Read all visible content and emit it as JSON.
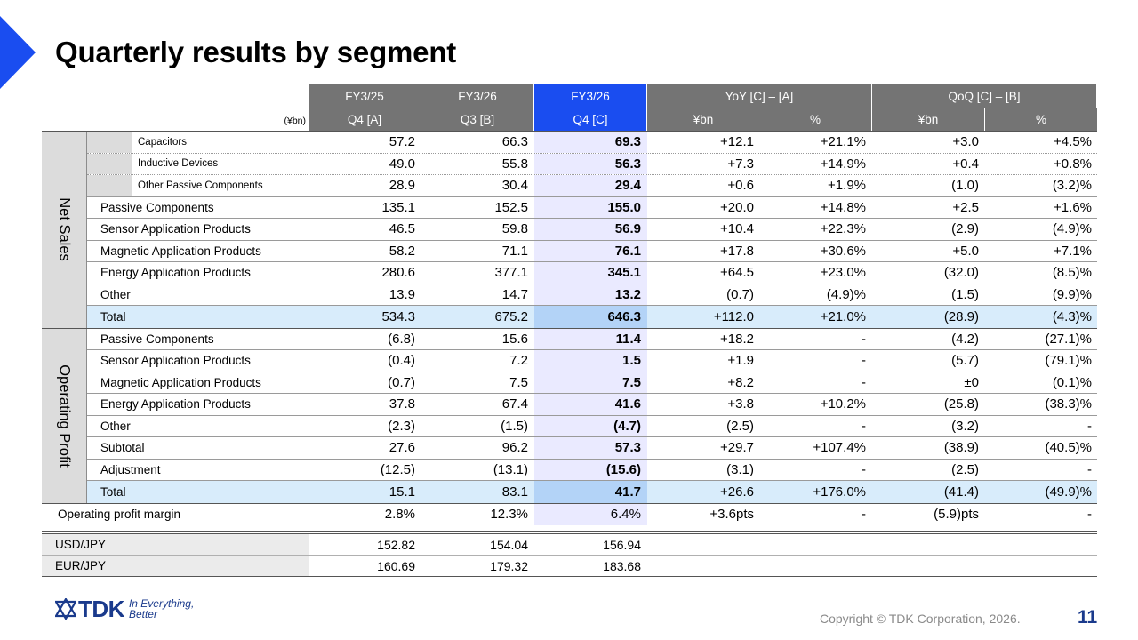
{
  "title": "Quarterly results by segment",
  "unit_note": "(¥bn)",
  "header_top": [
    "FY3/25",
    "FY3/26",
    "FY3/26",
    "YoY [C] – [A]",
    "QoQ [C] – [B]"
  ],
  "header_bottom": [
    "Q4 [A]",
    "Q3 [B]",
    "Q4 [C]",
    "¥bn",
    "%",
    "¥bn",
    "%"
  ],
  "net_sales": {
    "label": "Net Sales",
    "rows": [
      {
        "label": "Capacitors",
        "values": [
          "57.2",
          "66.3",
          "69.3",
          "+12.1",
          "+21.1%",
          "+3.0",
          "+4.5%"
        ]
      },
      {
        "label": "Inductive Devices",
        "values": [
          "49.0",
          "55.8",
          "56.3",
          "+7.3",
          "+14.9%",
          "+0.4",
          "+0.8%"
        ]
      },
      {
        "label": "Other Passive Components",
        "values": [
          "28.9",
          "30.4",
          "29.4",
          "+0.6",
          "+1.9%",
          "(1.0)",
          "(3.2)%"
        ]
      },
      {
        "label": "Passive Components",
        "values": [
          "135.1",
          "152.5",
          "155.0",
          "+20.0",
          "+14.8%",
          "+2.5",
          "+1.6%"
        ]
      },
      {
        "label": "Sensor Application Products",
        "values": [
          "46.5",
          "59.8",
          "56.9",
          "+10.4",
          "+22.3%",
          "(2.9)",
          "(4.9)%"
        ]
      },
      {
        "label": "Magnetic Application Products",
        "values": [
          "58.2",
          "71.1",
          "76.1",
          "+17.8",
          "+30.6%",
          "+5.0",
          "+7.1%"
        ]
      },
      {
        "label": "Energy Application Products",
        "values": [
          "280.6",
          "377.1",
          "345.1",
          "+64.5",
          "+23.0%",
          "(32.0)",
          "(8.5)%"
        ]
      },
      {
        "label": "Other",
        "values": [
          "13.9",
          "14.7",
          "13.2",
          "(0.7)",
          "(4.9)%",
          "(1.5)",
          "(9.9)%"
        ]
      },
      {
        "label": "Total",
        "values": [
          "534.3",
          "675.2",
          "646.3",
          "+112.0",
          "+21.0%",
          "(28.9)",
          "(4.3)%"
        ]
      }
    ]
  },
  "operating_profit": {
    "label": "Operating Profit",
    "rows": [
      {
        "label": "Passive Components",
        "values": [
          "(6.8)",
          "15.6",
          "11.4",
          "+18.2",
          "-",
          "(4.2)",
          "(27.1)%"
        ]
      },
      {
        "label": "Sensor Application Products",
        "values": [
          "(0.4)",
          "7.2",
          "1.5",
          "+1.9",
          "-",
          "(5.7)",
          "(79.1)%"
        ]
      },
      {
        "label": "Magnetic Application Products",
        "values": [
          "(0.7)",
          "7.5",
          "7.5",
          "+8.2",
          "-",
          "±0",
          "(0.1)%"
        ]
      },
      {
        "label": "Energy Application Products",
        "values": [
          "37.8",
          "67.4",
          "41.6",
          "+3.8",
          "+10.2%",
          "(25.8)",
          "(38.3)%"
        ]
      },
      {
        "label": "Other",
        "values": [
          "(2.3)",
          "(1.5)",
          "(4.7)",
          "(2.5)",
          "-",
          "(3.2)",
          "-"
        ]
      },
      {
        "label": "Subtotal",
        "values": [
          "27.6",
          "96.2",
          "57.3",
          "+29.7",
          "+107.4%",
          "(38.9)",
          "(40.5)%"
        ]
      },
      {
        "label": "Adjustment",
        "values": [
          "(12.5)",
          "(13.1)",
          "(15.6)",
          "(3.1)",
          "-",
          "(2.5)",
          "-"
        ]
      },
      {
        "label": "Total",
        "values": [
          "15.1",
          "83.1",
          "41.7",
          "+26.6",
          "+176.0%",
          "(41.4)",
          "(49.9)%"
        ]
      }
    ]
  },
  "margin": {
    "label": "Operating profit margin",
    "values": [
      "2.8%",
      "12.3%",
      "6.4%",
      "+3.6pts",
      "-",
      "(5.9)pts",
      "-"
    ]
  },
  "fx": [
    {
      "label": "USD/JPY",
      "values": [
        "152.82",
        "154.04",
        "156.94"
      ]
    },
    {
      "label": "EUR/JPY",
      "values": [
        "160.69",
        "179.32",
        "183.68"
      ]
    }
  ],
  "footer": {
    "logo_text": "TDK",
    "tagline_line1": "In Everything,",
    "tagline_line2": "Better",
    "copyright": "Copyright  © TDK Corporation, 2026.",
    "page_number": "11"
  },
  "colors": {
    "accent_blue": "#1a4df0",
    "header_gray": "#747474",
    "total_blue": "#d8ecfb"
  }
}
